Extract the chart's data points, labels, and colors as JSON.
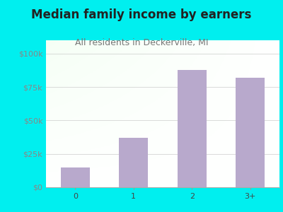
{
  "title": "Median family income by earners",
  "subtitle": "All residents in Deckerville, MI",
  "categories": [
    "0",
    "1",
    "2",
    "3+"
  ],
  "values": [
    15000,
    37000,
    88000,
    82000
  ],
  "bar_color": "#b8a9cc",
  "background_outer": "#00efef",
  "title_fontsize": 12,
  "subtitle_fontsize": 9,
  "tick_label_fontsize": 8,
  "ytick_color": "#888888",
  "xtick_color": "#444444",
  "title_color": "#222222",
  "subtitle_color": "#777777",
  "ylim": [
    0,
    110000
  ],
  "yticks": [
    0,
    25000,
    50000,
    75000,
    100000
  ],
  "ytick_labels": [
    "$0",
    "$25k",
    "$50k",
    "$75k",
    "$100k"
  ]
}
